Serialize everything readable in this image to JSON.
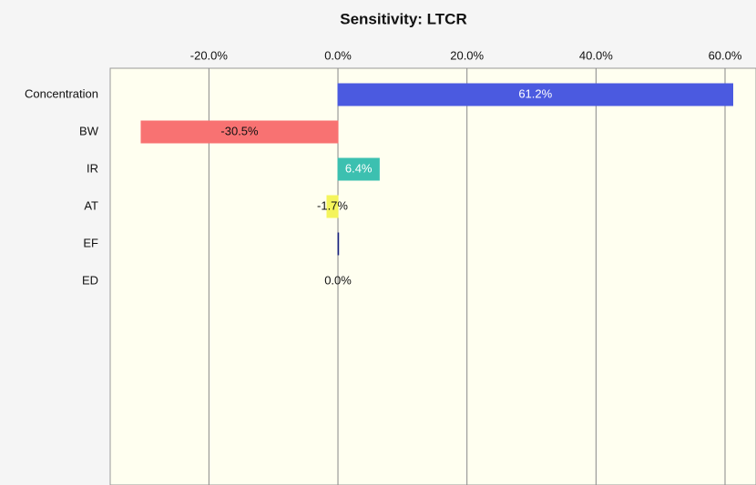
{
  "chart_data": {
    "type": "bar",
    "orientation": "horizontal",
    "title": "Sensitivity: LTCR",
    "categories": [
      "Concentration",
      "BW",
      "IR",
      "AT",
      "EF",
      "ED"
    ],
    "values": [
      61.2,
      -30.5,
      6.4,
      -1.7,
      0.1,
      0.0
    ],
    "value_labels": [
      "61.2%",
      "-30.5%",
      "6.4%",
      "-1.7%",
      null,
      "0.0%"
    ],
    "colors": [
      "#4b5ae0",
      "#f87272",
      "#3cc0b0",
      "#f4f45c",
      "#1a237e",
      "#888888"
    ],
    "xlim": [
      -35.3,
      64.8
    ],
    "xticks": [
      {
        "value": -20,
        "label": "-20.0%"
      },
      {
        "value": 0,
        "label": "0.0%"
      },
      {
        "value": 20,
        "label": "20.0%"
      },
      {
        "value": 40,
        "label": "40.0%"
      },
      {
        "value": 60,
        "label": "60.0%"
      }
    ],
    "grid": true
  }
}
